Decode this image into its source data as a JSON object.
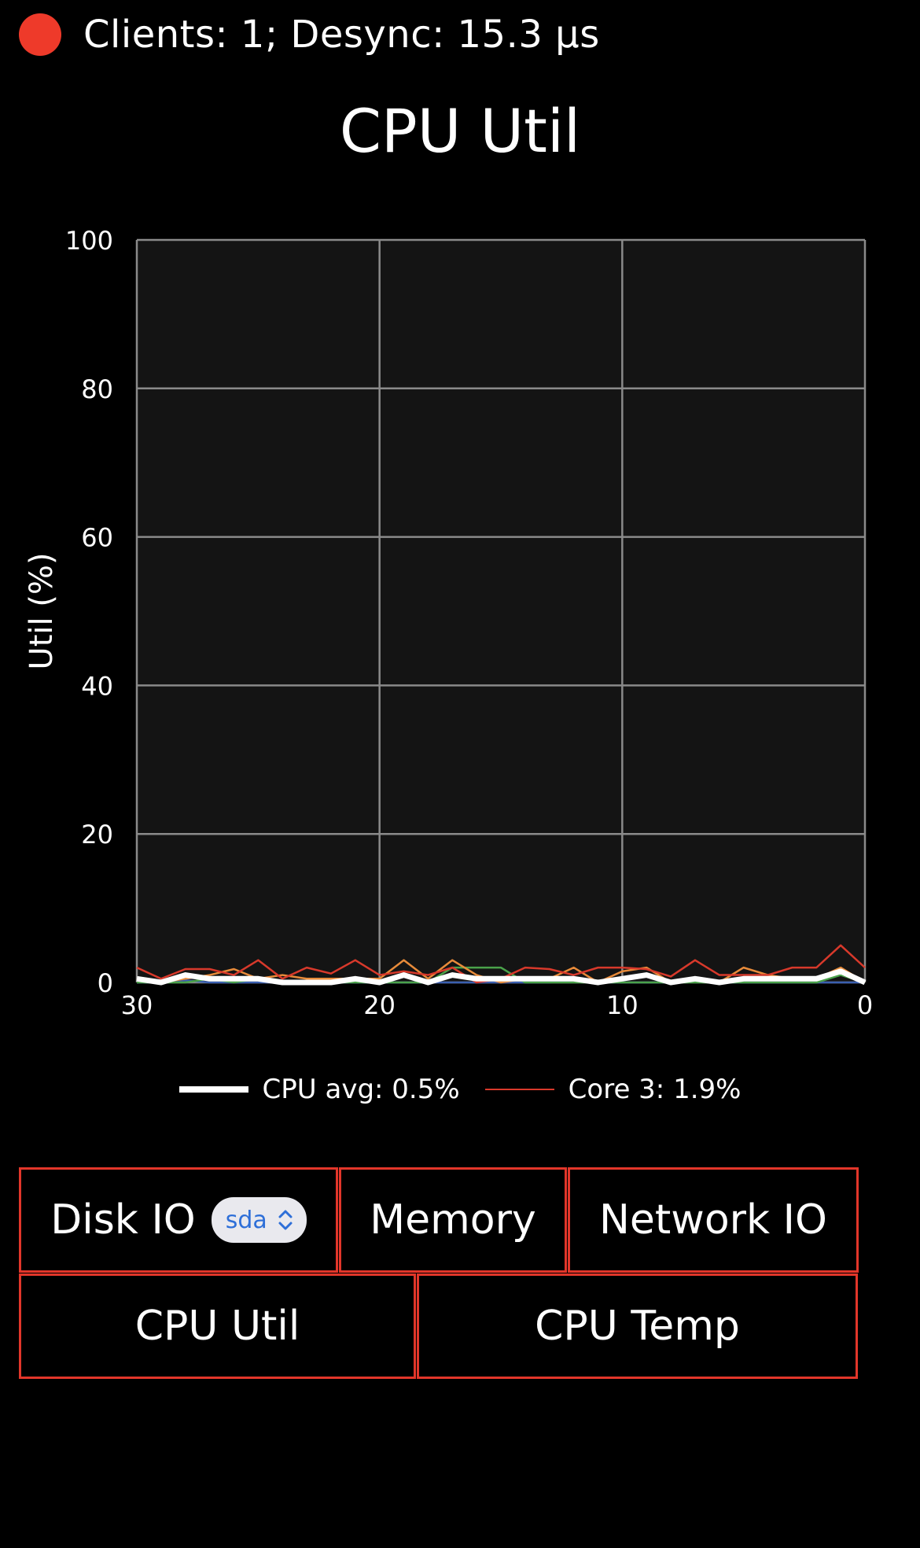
{
  "status": {
    "text": "Clients: 1; Desync: 15.3 µs",
    "indicator_color": "#ee3a2a"
  },
  "title": "CPU Util",
  "chart_data": {
    "type": "line",
    "ylabel": "Util (%)",
    "xlabel": "",
    "xlim": [
      30,
      0
    ],
    "ylim": [
      0,
      100
    ],
    "x_ticks": [
      "30",
      "20",
      "10",
      "0"
    ],
    "y_ticks": [
      "100",
      "80",
      "60",
      "40",
      "20",
      "0"
    ],
    "grid": true,
    "x": [
      30,
      29,
      28,
      27,
      26,
      25,
      24,
      23,
      22,
      21,
      20,
      19,
      18,
      17,
      16,
      15,
      14,
      13,
      12,
      11,
      10,
      9,
      8,
      7,
      6,
      5,
      4,
      3,
      2,
      1,
      0
    ],
    "series": [
      {
        "name": "CPU avg: 0.5%",
        "color": "#ffffff",
        "width": 7,
        "values": [
          0.5,
          0,
          1,
          0.5,
          0.5,
          0.5,
          0,
          0,
          0,
          0.5,
          0,
          1,
          0,
          1,
          0.5,
          0.5,
          0.5,
          0.5,
          0.5,
          0,
          0.5,
          1,
          0,
          0.5,
          0,
          0.5,
          0.5,
          0.5,
          0.5,
          1.5,
          0
        ]
      },
      {
        "name": "Core 3: 1.9%",
        "color": "#d8392b",
        "width": 2.5,
        "values": [
          2,
          0.5,
          1.8,
          1.8,
          1,
          3,
          0.5,
          2,
          1.2,
          3,
          1,
          1.5,
          1,
          2,
          0,
          0.5,
          2,
          1.8,
          1,
          2,
          2,
          1.8,
          0.8,
          3,
          1,
          1,
          1,
          2,
          2,
          5,
          2
        ]
      },
      {
        "name": "",
        "color": "#e88b3a",
        "width": 2.5,
        "values": [
          0.5,
          0,
          0.5,
          1,
          1.8,
          0.5,
          1,
          0.5,
          0.5,
          0.5,
          0.5,
          3,
          0.5,
          3,
          1,
          0,
          0.5,
          0.5,
          2,
          0,
          1.5,
          2,
          0,
          0.5,
          0,
          2,
          1,
          0.5,
          0.5,
          2,
          0
        ]
      },
      {
        "name": "",
        "color": "#4aa24a",
        "width": 2.5,
        "values": [
          0,
          0,
          0,
          0.5,
          0,
          0.5,
          0,
          0,
          0,
          0,
          0,
          0,
          0,
          2,
          2,
          2,
          0,
          0,
          0,
          0,
          0,
          0,
          0,
          0,
          0,
          0,
          0,
          0,
          0,
          1,
          0
        ]
      },
      {
        "name": "",
        "color": "#3a5fb0",
        "width": 2.5,
        "values": [
          0,
          0,
          0.3,
          0,
          0,
          0,
          0,
          0,
          0,
          0,
          0,
          0,
          0,
          0,
          0,
          0,
          0,
          0,
          0.3,
          0,
          0,
          0,
          0,
          0.5,
          0,
          0,
          0,
          0,
          0,
          0,
          0
        ]
      }
    ],
    "legend": [
      "CPU avg: 0.5%",
      "Core 3: 1.9%"
    ],
    "legend_position": "bottom"
  },
  "legend": {
    "avg_label": "CPU avg: 0.5%",
    "core_label": "Core 3: 1.9%"
  },
  "tabs": {
    "disk_io": "Disk IO",
    "disk_select_value": "sda",
    "memory": "Memory",
    "network_io": "Network IO",
    "cpu_util": "CPU Util",
    "cpu_temp": "CPU Temp"
  }
}
